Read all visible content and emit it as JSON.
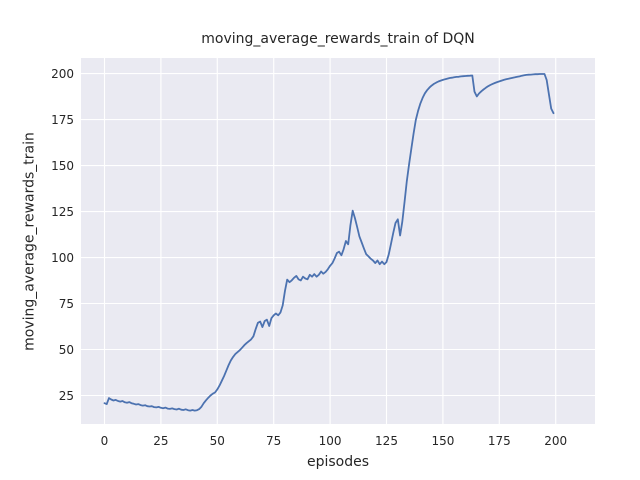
{
  "figure": {
    "background_color": "#ffffff"
  },
  "chart_data": {
    "type": "line",
    "title": "moving_average_rewards_train of DQN",
    "xlabel": "episodes",
    "ylabel": "moving_average_rewards_train",
    "x_ticks": [
      0,
      25,
      50,
      75,
      100,
      125,
      150,
      175,
      200
    ],
    "y_ticks": [
      25,
      50,
      75,
      100,
      125,
      150,
      175,
      200
    ],
    "xlim": [
      -10.4,
      217.4
    ],
    "ylim": [
      9.5,
      208.5
    ],
    "grid": true,
    "legend": "none",
    "style": {
      "plot_bg": "#eaeaf2",
      "grid_color": "#ffffff",
      "line_color": "#4c72b0",
      "text_color": "#262626",
      "line_width": 1.8
    },
    "series": [
      {
        "name": "moving_average_rewards_train",
        "x_start": 0,
        "x_step": 1,
        "values": [
          20.8,
          20.3,
          23.6,
          22.8,
          22.3,
          22.6,
          22.0,
          21.7,
          22.0,
          21.3,
          21.1,
          21.4,
          20.8,
          20.5,
          20.1,
          20.3,
          19.8,
          19.5,
          19.7,
          19.2,
          19.0,
          19.2,
          18.7,
          18.5,
          18.8,
          18.3,
          18.1,
          18.4,
          17.9,
          17.7,
          18.0,
          17.6,
          17.4,
          17.8,
          17.3,
          17.1,
          17.5,
          17.0,
          16.8,
          17.1,
          16.8,
          17.0,
          17.6,
          18.9,
          20.8,
          22.4,
          23.8,
          25.0,
          26.0,
          26.6,
          28.3,
          30.4,
          33.0,
          35.6,
          38.5,
          41.5,
          44.0,
          46.0,
          47.5,
          48.6,
          49.6,
          51.0,
          52.4,
          53.5,
          54.5,
          55.5,
          57.2,
          61.0,
          64.5,
          65.2,
          62.2,
          65.5,
          66.2,
          62.8,
          67.0,
          68.6,
          69.6,
          68.6,
          70.2,
          74.0,
          82.0,
          88.0,
          86.6,
          87.6,
          89.0,
          90.0,
          88.2,
          87.6,
          89.6,
          88.6,
          88.2,
          90.6,
          89.6,
          91.0,
          89.6,
          90.6,
          92.4,
          91.2,
          92.2,
          93.6,
          95.5,
          97.0,
          99.5,
          102.5,
          103.2,
          101.2,
          104.5,
          109.0,
          107.2,
          117.5,
          125.5,
          121.5,
          116.5,
          111.5,
          108.2,
          105.0,
          101.8,
          100.6,
          99.4,
          98.4,
          97.0,
          98.4,
          96.4,
          97.8,
          96.4,
          97.6,
          101.8,
          107.5,
          113.5,
          118.8,
          120.8,
          112.0,
          119.5,
          130.5,
          141.5,
          150.8,
          159.0,
          167.5,
          174.8,
          179.8,
          183.8,
          186.8,
          189.3,
          191.0,
          192.4,
          193.5,
          194.4,
          195.1,
          195.7,
          196.2,
          196.6,
          197.0,
          197.3,
          197.6,
          197.8,
          198.0,
          198.2,
          198.3,
          198.5,
          198.6,
          198.7,
          198.8,
          198.9,
          199.0,
          190.2,
          187.6,
          189.2,
          190.4,
          191.4,
          192.3,
          193.1,
          193.8,
          194.4,
          194.9,
          195.4,
          195.8,
          196.2,
          196.6,
          196.9,
          197.2,
          197.5,
          197.8,
          198.0,
          198.3,
          198.5,
          198.9,
          199.1,
          199.3,
          199.4,
          199.5,
          199.6,
          199.7,
          199.7,
          199.8,
          199.8,
          199.8,
          196.5,
          188.5,
          181.0,
          178.5
        ]
      }
    ]
  }
}
